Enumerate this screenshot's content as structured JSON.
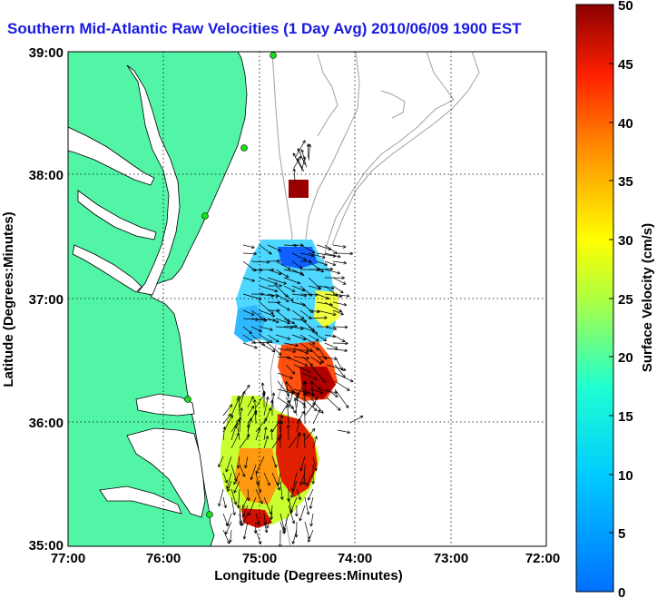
{
  "title": "Southern Mid-Atlantic Raw Velocities (1 Day Avg) 2010/06/09 1900 EST",
  "map": {
    "xlabel": "Longitude (Degrees:Minutes)",
    "ylabel": "Latitude (Degrees:Minutes)",
    "x_ticks": [
      "77:00",
      "76:00",
      "75:00",
      "74:00",
      "73:00",
      "72:00"
    ],
    "y_ticks": [
      "39:00",
      "38:00",
      "37:00",
      "36:00",
      "35:00"
    ],
    "lon_range": [
      -77,
      -72
    ],
    "lat_range": [
      35,
      39
    ],
    "grid": "dotted",
    "colors": {
      "land": "#52f5a6",
      "contour": "#a0a0a0",
      "station": "#18e018"
    }
  },
  "colorbar": {
    "label": "Surface Velocity (cm/s)",
    "ticks": [
      "50",
      "45",
      "40",
      "35",
      "30",
      "25",
      "20",
      "15",
      "10",
      "5",
      "0"
    ],
    "range": [
      0,
      50
    ],
    "colormap": "jet"
  }
}
